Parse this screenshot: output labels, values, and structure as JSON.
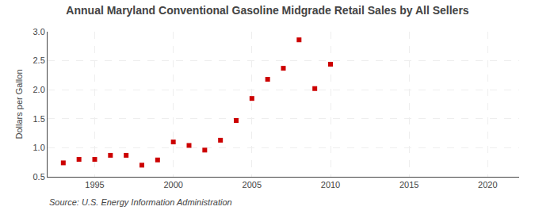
{
  "chart_data": {
    "type": "scatter",
    "title": "Annual Maryland Conventional Gasoline Midgrade Retail Sales by All Sellers",
    "ylabel": "Dollars per Gallon",
    "annotations": [
      "Source: U.S. Energy Information Administration"
    ],
    "x": [
      1993,
      1994,
      1995,
      1996,
      1997,
      1998,
      1999,
      2000,
      2001,
      2002,
      2003,
      2004,
      2005,
      2006,
      2007,
      2008,
      2009,
      2010
    ],
    "values": [
      0.74,
      0.8,
      0.8,
      0.87,
      0.87,
      0.7,
      0.79,
      1.1,
      1.04,
      0.96,
      1.13,
      1.47,
      1.85,
      2.18,
      2.37,
      2.86,
      2.02,
      2.44
    ],
    "color": "#cc0000",
    "marker": "square",
    "xlim": [
      1992,
      2022
    ],
    "ylim": [
      0.5,
      3.0
    ],
    "xticks": [
      1995,
      2000,
      2005,
      2010,
      2015,
      2020
    ],
    "yticks": [
      0.5,
      {
        "value": 1.0,
        "label": "1.0"
      },
      1.5,
      {
        "value": 2.0,
        "label": "2.0"
      },
      2.5,
      {
        "value": 3.0,
        "label": "3.0"
      }
    ],
    "grid": true
  }
}
